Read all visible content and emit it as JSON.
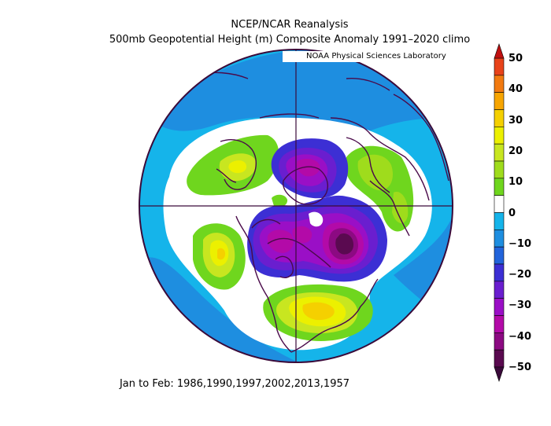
{
  "title": "NCEP/NCAR Reanalysis",
  "subtitle": "500mb Geopotential Height (m) Composite Anomaly 1991–2020 climo",
  "credit": "NOAA Physical Sciences Laboratory",
  "footer": "Jan to Feb: 1986,1990,1997,2002,2013,1957",
  "colorbar": {
    "labels": [
      "50",
      "40",
      "30",
      "20",
      "10",
      "0",
      "−10",
      "−20",
      "−30",
      "−40",
      "−50"
    ],
    "bins": [
      {
        "range": "40 to 50",
        "color": "#e8431a"
      },
      {
        "range": "35 to 40",
        "color": "#f27a10"
      },
      {
        "range": "30 to 35",
        "color": "#f7a500"
      },
      {
        "range": "25 to 30",
        "color": "#f5d000"
      },
      {
        "range": "20 to 25",
        "color": "#ecf000"
      },
      {
        "range": "15 to 20",
        "color": "#c8e620"
      },
      {
        "range": "10 to 15",
        "color": "#9fdc1c"
      },
      {
        "range": "5 to 10",
        "color": "#6fd61e"
      },
      {
        "range": "-5 to 5",
        "color": "#ffffff"
      },
      {
        "range": "-10 to -5",
        "color": "#15b4ea"
      },
      {
        "range": "-15 to -10",
        "color": "#1e8ee0"
      },
      {
        "range": "-20 to -15",
        "color": "#2264db"
      },
      {
        "range": "-25 to -20",
        "color": "#3c2fd4"
      },
      {
        "range": "-30 to -25",
        "color": "#6a1ecf"
      },
      {
        "range": "-35 to -30",
        "color": "#9a0fc6"
      },
      {
        "range": "-40 to -35",
        "color": "#b30aa8"
      },
      {
        "range": "-45 to -40",
        "color": "#8c0a82"
      },
      {
        "range": "-50 to -45",
        "color": "#5a0a50"
      }
    ],
    "top_arrow_color": "#c01010",
    "bottom_arrow_color": "#3a0a3a"
  },
  "map": {
    "projection": "north polar stereographic",
    "coastline_color": "#4a0a4a",
    "features": [
      {
        "name": "canada-low",
        "anomaly": -50
      },
      {
        "name": "baffin-greenland-low",
        "anomaly": -40
      },
      {
        "name": "northeast-siberia-low",
        "anomaly": -35
      },
      {
        "name": "eastern-us-high",
        "anomaly": 25
      },
      {
        "name": "north-atlantic-high",
        "anomaly": 25
      },
      {
        "name": "europe-high",
        "anomaly": 15
      },
      {
        "name": "western-russia-high",
        "anomaly": 15
      },
      {
        "name": "alaska-pacific-high",
        "anomaly": 15
      }
    ]
  }
}
